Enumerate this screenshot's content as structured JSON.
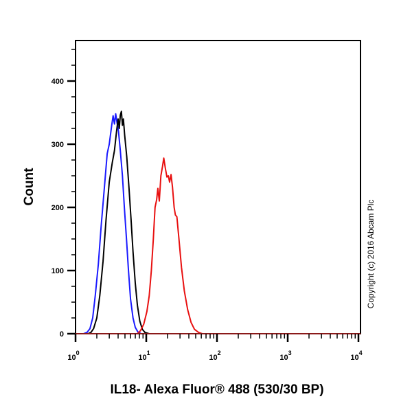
{
  "chart_data": {
    "type": "line",
    "title": "",
    "xlabel": "IL18- Alexa Fluor® 488 (530/30 BP)",
    "ylabel": "Count",
    "xscale": "log",
    "xlim": [
      1,
      10000
    ],
    "ylim": [
      0,
      460
    ],
    "x_ticks": [
      {
        "base": "10",
        "exp": "0",
        "value": 1
      },
      {
        "base": "10",
        "exp": "1",
        "value": 10
      },
      {
        "base": "10",
        "exp": "2",
        "value": 100
      },
      {
        "base": "10",
        "exp": "3",
        "value": 1000
      },
      {
        "base": "10",
        "exp": "4",
        "value": 10000
      }
    ],
    "y_ticks": [
      0,
      100,
      200,
      300,
      400
    ],
    "grid": false,
    "legend": null,
    "annotations": [
      "Copyright (c) 2016 Abcam Plc"
    ],
    "series": [
      {
        "name": "blue",
        "color": "#1a1aff",
        "points": [
          [
            1.0,
            0
          ],
          [
            1.3,
            0
          ],
          [
            1.45,
            2
          ],
          [
            1.6,
            8
          ],
          [
            1.75,
            25
          ],
          [
            1.9,
            60
          ],
          [
            2.1,
            110
          ],
          [
            2.3,
            170
          ],
          [
            2.55,
            230
          ],
          [
            2.8,
            285
          ],
          [
            3.0,
            300
          ],
          [
            3.25,
            330
          ],
          [
            3.4,
            345
          ],
          [
            3.55,
            332
          ],
          [
            3.7,
            348
          ],
          [
            3.85,
            335
          ],
          [
            4.05,
            320
          ],
          [
            4.3,
            290
          ],
          [
            4.6,
            250
          ],
          [
            4.9,
            200
          ],
          [
            5.25,
            150
          ],
          [
            5.6,
            100
          ],
          [
            6.0,
            55
          ],
          [
            6.5,
            25
          ],
          [
            7.0,
            10
          ],
          [
            7.6,
            3
          ],
          [
            8.5,
            0
          ],
          [
            10000,
            0
          ]
        ]
      },
      {
        "name": "black",
        "color": "#000000",
        "points": [
          [
            1.0,
            0
          ],
          [
            1.5,
            0
          ],
          [
            1.65,
            2
          ],
          [
            1.8,
            8
          ],
          [
            2.0,
            25
          ],
          [
            2.2,
            60
          ],
          [
            2.45,
            115
          ],
          [
            2.7,
            180
          ],
          [
            3.0,
            240
          ],
          [
            3.3,
            270
          ],
          [
            3.55,
            290
          ],
          [
            3.8,
            320
          ],
          [
            4.0,
            340
          ],
          [
            4.15,
            325
          ],
          [
            4.3,
            346
          ],
          [
            4.45,
            352
          ],
          [
            4.6,
            330
          ],
          [
            4.75,
            340
          ],
          [
            4.95,
            315
          ],
          [
            5.3,
            280
          ],
          [
            5.7,
            230
          ],
          [
            6.1,
            180
          ],
          [
            6.5,
            130
          ],
          [
            7.0,
            80
          ],
          [
            7.5,
            45
          ],
          [
            8.1,
            20
          ],
          [
            8.8,
            7
          ],
          [
            9.6,
            2
          ],
          [
            11,
            0
          ],
          [
            10000,
            0
          ]
        ]
      },
      {
        "name": "red",
        "color": "#e81010",
        "points": [
          [
            1.0,
            0
          ],
          [
            7.5,
            0
          ],
          [
            8.3,
            5
          ],
          [
            9.2,
            15
          ],
          [
            10.2,
            35
          ],
          [
            11.0,
            60
          ],
          [
            11.8,
            100
          ],
          [
            12.6,
            150
          ],
          [
            13.3,
            200
          ],
          [
            14.0,
            212
          ],
          [
            14.6,
            230
          ],
          [
            15.3,
            210
          ],
          [
            16.1,
            250
          ],
          [
            17.0,
            265
          ],
          [
            17.7,
            278
          ],
          [
            18.6,
            262
          ],
          [
            19.6,
            248
          ],
          [
            20.5,
            250
          ],
          [
            21.4,
            240
          ],
          [
            22.4,
            252
          ],
          [
            23.5,
            232
          ],
          [
            24.8,
            200
          ],
          [
            25.8,
            188
          ],
          [
            27.1,
            185
          ],
          [
            29.0,
            150
          ],
          [
            31.5,
            105
          ],
          [
            34.5,
            68
          ],
          [
            38.5,
            38
          ],
          [
            43,
            18
          ],
          [
            48,
            7
          ],
          [
            55,
            2
          ],
          [
            62,
            0
          ],
          [
            10000,
            0
          ]
        ]
      }
    ]
  },
  "labels": {
    "ylabel": "Count",
    "xlabel": "IL18- Alexa Fluor® 488 (530/30 BP)",
    "copyright": "Copyright (c) 2016 Abcam Plc",
    "y_ticks": [
      "0",
      "100",
      "200",
      "300",
      "400"
    ],
    "x_ticks": [
      {
        "base": "10",
        "exp": "0"
      },
      {
        "base": "10",
        "exp": "1"
      },
      {
        "base": "10",
        "exp": "2"
      },
      {
        "base": "10",
        "exp": "3"
      },
      {
        "base": "10",
        "exp": "4"
      }
    ]
  }
}
